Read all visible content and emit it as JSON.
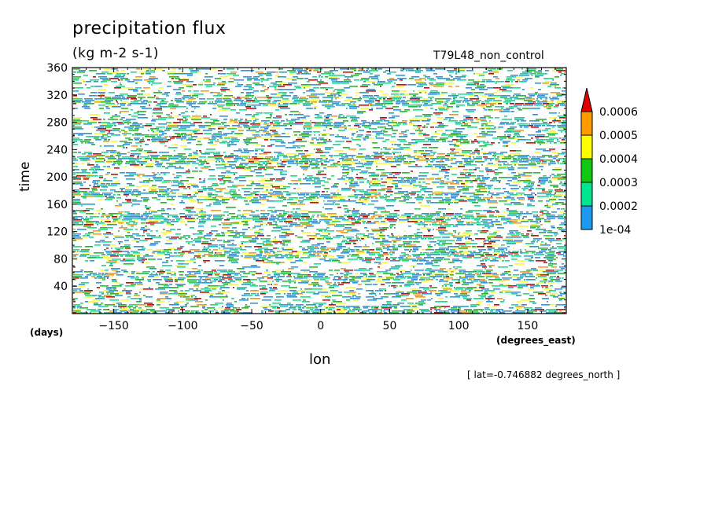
{
  "chart_data": {
    "type": "heatmap",
    "title": "precipitation flux",
    "units": "(kg m-2 s-1)",
    "run_label": "T79L48_non_control",
    "xlabel": "lon",
    "x_units": "(degrees_east)",
    "ylabel": "time",
    "y_units": "(days)",
    "annotation": "[ lat=-0.746882 degrees_north ]",
    "xlim": [
      -180,
      178
    ],
    "ylim": [
      0,
      360
    ],
    "x_ticks": [
      -150,
      -100,
      -50,
      0,
      50,
      100,
      150
    ],
    "x_tick_labels": [
      "−150",
      "−100",
      "−50",
      "0",
      "50",
      "100",
      "150"
    ],
    "y_ticks": [
      40,
      80,
      120,
      160,
      200,
      240,
      280,
      320,
      360
    ],
    "colorbar": {
      "levels": [
        0.0001,
        0.0002,
        0.0003,
        0.0004,
        0.0005,
        0.0006
      ],
      "level_labels": [
        "1e-04",
        "0.0002",
        "0.0003",
        "0.0004",
        "0.0005",
        "0.0006"
      ],
      "colors": [
        "#1e9bf0",
        "#00e58f",
        "#10c810",
        "#ffff00",
        "#ff9900",
        "#e00000"
      ],
      "extend": "max"
    }
  }
}
